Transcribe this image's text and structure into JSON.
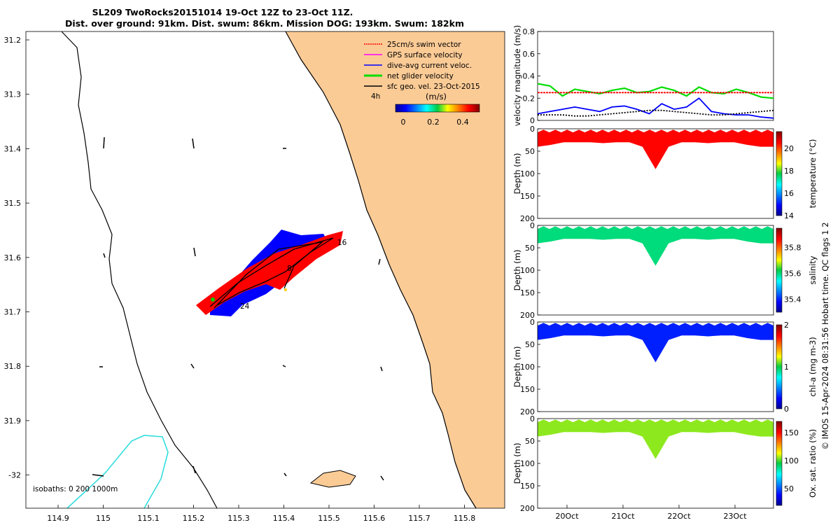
{
  "title": {
    "line1": "SL209 TwoRocks20151014 19-Oct 12Z to 23-Oct 11Z.",
    "line2": "Dist. over ground: 91km. Dist. swum: 86km. Mission DOG: 193km. Swum: 182km"
  },
  "map": {
    "lat_ticks": [
      "31.2",
      "31.3",
      "31.4",
      "31.5",
      "31.6",
      "31.7",
      "31.8",
      "31.9",
      "-32"
    ],
    "lon_ticks": [
      "114.9",
      "115",
      "115.1",
      "115.2",
      "115.3",
      "115.4",
      "115.5",
      "115.6",
      "115.7",
      "115.8"
    ],
    "legend": [
      {
        "label": "25cm/s swim vector",
        "color": "#ff0000"
      },
      {
        "label": "GPS surface velocity",
        "color": "#ff00ff"
      },
      {
        "label": "dive-avg current veloc.",
        "color": "#0000ff"
      },
      {
        "label": "net glider velocity",
        "color": "#00dd00"
      },
      {
        "label": "sfc geo. vel. 23-Oct-2015",
        "color": "#000000"
      }
    ],
    "interval_label": "4h",
    "colorbar_unit": "(m/s)",
    "colorbar_ticks": [
      "0",
      "0.2",
      "0.4"
    ],
    "isobaths_label": "isobaths: 0   200  1000m",
    "track_labels": [
      "24",
      "8",
      "16"
    ],
    "colors": {
      "land": "#fbcb96",
      "isobath": "#33dddd",
      "swim": "#ff0000",
      "current": "#0000ff"
    }
  },
  "chart_data": [
    {
      "type": "line",
      "title": "velocity magnitude",
      "ylabel": "velocity magnitude (m/s)",
      "ylim": [
        0,
        0.8
      ],
      "y_ticks": [
        "0",
        "0.2",
        "0.4",
        "0.6",
        "0.8"
      ],
      "x_ticks": [
        "20Oct",
        "21Oct",
        "22Oct",
        "23Oct"
      ],
      "series": [
        {
          "name": "net glider velocity",
          "color": "#00dd00",
          "values": [
            0.33,
            0.31,
            0.22,
            0.28,
            0.26,
            0.24,
            0.27,
            0.29,
            0.25,
            0.26,
            0.3,
            0.27,
            0.22,
            0.3,
            0.25,
            0.24,
            0.28,
            0.25,
            0.21,
            0.2
          ]
        },
        {
          "name": "25cm/s swim vector",
          "color": "#ff0000",
          "values": [
            0.25,
            0.25,
            0.25,
            0.25,
            0.25,
            0.25,
            0.25,
            0.25,
            0.25,
            0.25,
            0.25,
            0.25,
            0.25,
            0.25,
            0.25,
            0.25,
            0.25,
            0.25,
            0.25,
            0.25
          ]
        },
        {
          "name": "dive-avg current veloc.",
          "color": "#0000ff",
          "values": [
            0.06,
            0.08,
            0.1,
            0.12,
            0.1,
            0.08,
            0.12,
            0.13,
            0.1,
            0.06,
            0.15,
            0.1,
            0.12,
            0.2,
            0.08,
            0.06,
            0.05,
            0.05,
            0.03,
            0.02
          ]
        },
        {
          "name": "sfc geo. vel.",
          "color": "#000000",
          "values": [
            0.05,
            0.05,
            0.05,
            0.04,
            0.04,
            0.05,
            0.06,
            0.07,
            0.08,
            0.09,
            0.09,
            0.08,
            0.07,
            0.06,
            0.05,
            0.05,
            0.06,
            0.07,
            0.08,
            0.09
          ]
        }
      ]
    },
    {
      "type": "heatmap",
      "variable": "temperature",
      "cbar_label": "temperature (°C)",
      "ylabel": "Depth (m)",
      "ylim": [
        0,
        200
      ],
      "y_ticks": [
        "0",
        "50",
        "100",
        "150",
        "200"
      ],
      "cbar_ticks": [
        "14",
        "16",
        "18",
        "20"
      ],
      "crange": [
        14,
        21.5
      ],
      "value": 20.5,
      "colormap": "jet"
    },
    {
      "type": "heatmap",
      "variable": "salinity",
      "cbar_label": "salinity",
      "ylabel": "Depth (m)",
      "ylim": [
        0,
        200
      ],
      "y_ticks": [
        "0",
        "50",
        "100",
        "150",
        "200"
      ],
      "cbar_ticks": [
        "35.4",
        "35.6",
        "35.8"
      ],
      "crange": [
        35.3,
        35.95
      ],
      "value": 35.6,
      "colormap": "jet"
    },
    {
      "type": "heatmap",
      "variable": "chl-a",
      "cbar_label": "chl-a (mg m-3)",
      "ylabel": "Depth (m)",
      "ylim": [
        0,
        200
      ],
      "y_ticks": [
        "0",
        "50",
        "100",
        "150",
        "200"
      ],
      "cbar_ticks": [
        "0",
        "1",
        "2"
      ],
      "crange": [
        0,
        2
      ],
      "value": 0.3,
      "colormap": "jet"
    },
    {
      "type": "heatmap",
      "variable": "oxygen",
      "cbar_label": "Ox. sat. ratio (%)",
      "ylabel": "Depth (m)",
      "ylim": [
        0,
        200
      ],
      "y_ticks": [
        "0",
        "50",
        "100",
        "150",
        "200"
      ],
      "cbar_ticks": [
        "50",
        "100",
        "150"
      ],
      "crange": [
        20,
        170
      ],
      "value": 105,
      "colormap": "jet",
      "x_ticks": [
        "20Oct",
        "21Oct",
        "22Oct",
        "23Oct"
      ]
    }
  ],
  "side_note": "© IMOS 15-Apr-2024 08:31:56 Hobart time. QC flags 1  2"
}
